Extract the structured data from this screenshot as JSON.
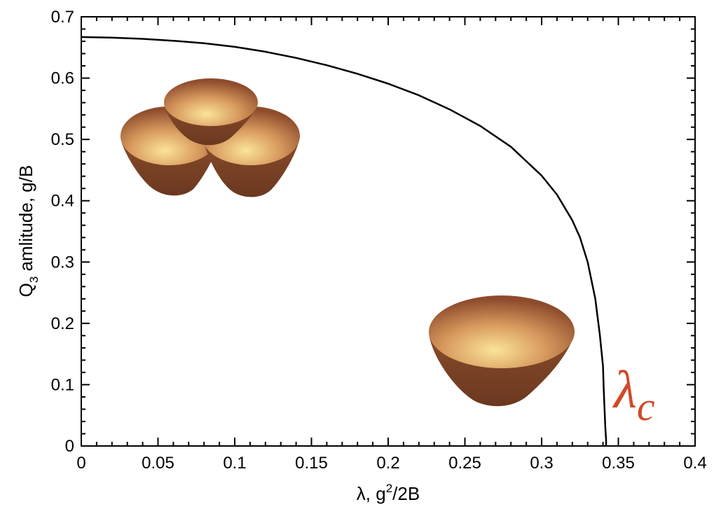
{
  "chart_data": {
    "type": "line",
    "title": "",
    "xlabel": {
      "base": "λ, g",
      "sup": "2",
      "tail": "/2B"
    },
    "ylabel": {
      "base": "Q",
      "sub": "3",
      "tail": " amlitude, g/B"
    },
    "xlim": [
      0,
      0.4
    ],
    "ylim": [
      0,
      0.7
    ],
    "xticks": [
      "0",
      "0.05",
      "0.1",
      "0.15",
      "0.2",
      "0.25",
      "0.3",
      "0.35",
      "0.4"
    ],
    "yticks": [
      "0",
      "0.1",
      "0.2",
      "0.3",
      "0.4",
      "0.5",
      "0.6",
      "0.7"
    ],
    "grid": false,
    "series": [
      {
        "color": "#000000",
        "x": [
          0,
          0.02,
          0.04,
          0.06,
          0.08,
          0.1,
          0.12,
          0.14,
          0.16,
          0.18,
          0.2,
          0.22,
          0.24,
          0.26,
          0.28,
          0.3,
          0.31,
          0.32,
          0.325,
          0.33,
          0.335,
          0.338,
          0.34,
          0.3405,
          0.341,
          0.3415,
          0.342,
          0.342
        ],
        "y": [
          0.667,
          0.666,
          0.664,
          0.661,
          0.657,
          0.651,
          0.643,
          0.633,
          0.621,
          0.607,
          0.591,
          0.572,
          0.549,
          0.522,
          0.488,
          0.441,
          0.41,
          0.368,
          0.34,
          0.3,
          0.24,
          0.18,
          0.13,
          0.09,
          0.06,
          0.03,
          0.01,
          0.0
        ]
      }
    ],
    "annotations": [
      {
        "text": "λ",
        "sub": "c",
        "color": "#d04a2a",
        "at": [
          0.357,
          0.06
        ]
      }
    ],
    "insets": [
      {
        "icon": "triple-well-surface-icon",
        "colors": [
          "#e0b070",
          "#8a4a28"
        ]
      },
      {
        "icon": "single-bowl-surface-icon",
        "colors": [
          "#f0d080",
          "#7a3e22"
        ]
      }
    ]
  }
}
